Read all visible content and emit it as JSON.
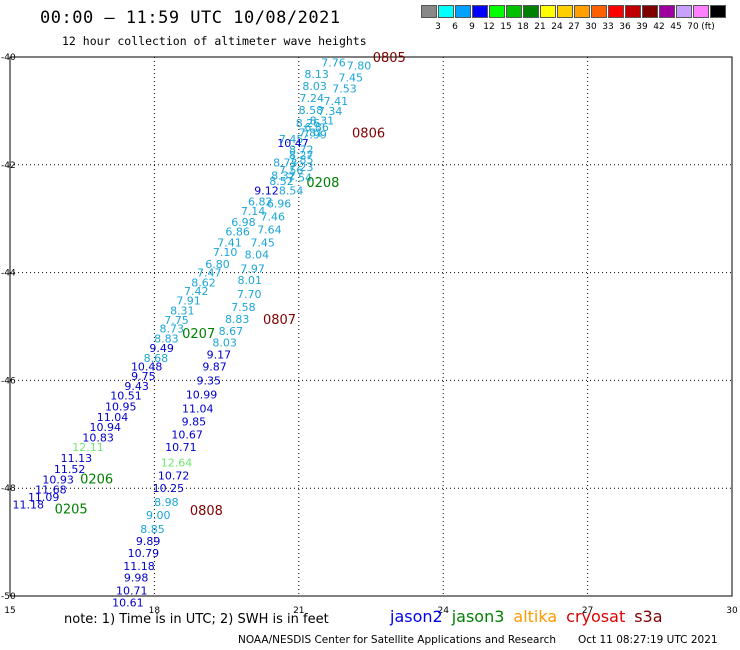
{
  "chart_data": {
    "type": "scatter",
    "title": "00:00 – 11:59 UTC 10/08/2021",
    "subtitle": "12 hour collection of altimeter wave heights",
    "xlim": [
      15,
      30
    ],
    "ylim": [
      -50,
      -40
    ],
    "x_ticks": [
      "15",
      "18",
      "21",
      "24",
      "27",
      "30"
    ],
    "y_ticks": [
      "-40",
      "-42",
      "-44",
      "-46",
      "-48",
      "-50"
    ],
    "grid": true,
    "units": "(ft)",
    "colorscale": {
      "labels": [
        "3",
        "6",
        "9",
        "12",
        "15",
        "18",
        "21",
        "24",
        "27",
        "30",
        "33",
        "36",
        "39",
        "42",
        "45",
        "70"
      ],
      "colors": [
        "#888888",
        "#00ffff",
        "#00a0ff",
        "#0000ff",
        "#00ff00",
        "#00c000",
        "#008000",
        "#ffff00",
        "#ffd000",
        "#ffa000",
        "#ff6000",
        "#ff0000",
        "#c00000",
        "#800000",
        "#a000a0",
        "#c8a0ff",
        "#ff80ff",
        "#000000"
      ]
    },
    "points": [
      {
        "x": 21.72,
        "y": -40.1,
        "v": "7.76",
        "c": "#1ba6d8"
      },
      {
        "x": 22.25,
        "y": -40.16,
        "v": "7.80",
        "c": "#1ba6d8"
      },
      {
        "x": 21.37,
        "y": -40.32,
        "v": "8.13",
        "c": "#1ba6d8"
      },
      {
        "x": 22.08,
        "y": -40.38,
        "v": "7.45",
        "c": "#1ba6d8"
      },
      {
        "x": 21.33,
        "y": -40.54,
        "v": "8.03",
        "c": "#1ba6d8"
      },
      {
        "x": 21.95,
        "y": -40.58,
        "v": "7.53",
        "c": "#1ba6d8"
      },
      {
        "x": 21.27,
        "y": -40.76,
        "v": "7.24",
        "c": "#1ba6d8"
      },
      {
        "x": 21.77,
        "y": -40.82,
        "v": "7.41",
        "c": "#1ba6d8"
      },
      {
        "x": 21.25,
        "y": -40.98,
        "v": "8.58",
        "c": "#1ba6d8"
      },
      {
        "x": 21.65,
        "y": -41.0,
        "v": "7.34",
        "c": "#1ba6d8"
      },
      {
        "x": 21.48,
        "y": -41.18,
        "v": "8.31",
        "c": "#1ba6d8"
      },
      {
        "x": 21.19,
        "y": -41.22,
        "v": "8.26",
        "c": "#1ba6d8"
      },
      {
        "x": 21.37,
        "y": -41.3,
        "v": "6.86",
        "c": "#1ba6d8"
      },
      {
        "x": 21.25,
        "y": -41.4,
        "v": "7.81",
        "c": "#1ba6d8"
      },
      {
        "x": 21.33,
        "y": -41.44,
        "v": "7.99",
        "c": "#1ba6d8"
      },
      {
        "x": 20.84,
        "y": -41.52,
        "v": "7.45",
        "c": "#1ba6d8"
      },
      {
        "x": 20.88,
        "y": -41.6,
        "v": "10.47",
        "c": "#0000cc"
      },
      {
        "x": 21.05,
        "y": -41.72,
        "v": "8.72",
        "c": "#1ba6d8"
      },
      {
        "x": 21.05,
        "y": -41.82,
        "v": "8.27",
        "c": "#1ba6d8"
      },
      {
        "x": 21.05,
        "y": -41.9,
        "v": "7.85",
        "c": "#1ba6d8"
      },
      {
        "x": 20.72,
        "y": -41.96,
        "v": "8.73",
        "c": "#1ba6d8"
      },
      {
        "x": 21.05,
        "y": -42.04,
        "v": "7.23",
        "c": "#1ba6d8"
      },
      {
        "x": 20.84,
        "y": -42.1,
        "v": "7.56",
        "c": "#1ba6d8"
      },
      {
        "x": 20.68,
        "y": -42.2,
        "v": "8.32",
        "c": "#1ba6d8"
      },
      {
        "x": 21.02,
        "y": -42.24,
        "v": "7.54",
        "c": "#1ba6d8"
      },
      {
        "x": 20.64,
        "y": -42.3,
        "v": "8.52",
        "c": "#1ba6d8"
      },
      {
        "x": 20.84,
        "y": -42.48,
        "v": "8.54",
        "c": "#1ba6d8"
      },
      {
        "x": 20.33,
        "y": -42.48,
        "v": "9.12",
        "c": "#0000cc"
      },
      {
        "x": 20.2,
        "y": -42.68,
        "v": "6.82",
        "c": "#1ba6d8"
      },
      {
        "x": 20.59,
        "y": -42.72,
        "v": "6.96",
        "c": "#1ba6d8"
      },
      {
        "x": 20.05,
        "y": -42.86,
        "v": "7.14",
        "c": "#1ba6d8"
      },
      {
        "x": 20.46,
        "y": -42.96,
        "v": "7.46",
        "c": "#1ba6d8"
      },
      {
        "x": 19.85,
        "y": -43.06,
        "v": "6.98",
        "c": "#1ba6d8"
      },
      {
        "x": 19.73,
        "y": -43.24,
        "v": "6.86",
        "c": "#1ba6d8"
      },
      {
        "x": 20.39,
        "y": -43.2,
        "v": "7.64",
        "c": "#1ba6d8"
      },
      {
        "x": 19.56,
        "y": -43.44,
        "v": "7.41",
        "c": "#1ba6d8"
      },
      {
        "x": 20.25,
        "y": -43.44,
        "v": "7.45",
        "c": "#1ba6d8"
      },
      {
        "x": 19.47,
        "y": -43.62,
        "v": "7.10",
        "c": "#1ba6d8"
      },
      {
        "x": 20.13,
        "y": -43.66,
        "v": "8.04",
        "c": "#1ba6d8"
      },
      {
        "x": 19.31,
        "y": -43.84,
        "v": "6.80",
        "c": "#1ba6d8"
      },
      {
        "x": 19.14,
        "y": -44.0,
        "v": "7.47",
        "c": "#1ba6d8"
      },
      {
        "x": 20.04,
        "y": -43.92,
        "v": "7.97",
        "c": "#1ba6d8"
      },
      {
        "x": 19.02,
        "y": -44.18,
        "v": "8.62",
        "c": "#1ba6d8"
      },
      {
        "x": 19.98,
        "y": -44.14,
        "v": "8.01",
        "c": "#1ba6d8"
      },
      {
        "x": 18.87,
        "y": -44.34,
        "v": "7.42",
        "c": "#1ba6d8"
      },
      {
        "x": 19.97,
        "y": -44.4,
        "v": "7.70",
        "c": "#1ba6d8"
      },
      {
        "x": 18.71,
        "y": -44.52,
        "v": "7.91",
        "c": "#1ba6d8"
      },
      {
        "x": 19.85,
        "y": -44.64,
        "v": "7.58",
        "c": "#1ba6d8"
      },
      {
        "x": 18.58,
        "y": -44.7,
        "v": "8.31",
        "c": "#1ba6d8"
      },
      {
        "x": 19.72,
        "y": -44.86,
        "v": "8.83",
        "c": "#1ba6d8"
      },
      {
        "x": 18.46,
        "y": -44.88,
        "v": "7.75",
        "c": "#1ba6d8"
      },
      {
        "x": 18.36,
        "y": -45.04,
        "v": "8.73",
        "c": "#1ba6d8"
      },
      {
        "x": 19.59,
        "y": -45.08,
        "v": "8.67",
        "c": "#1ba6d8"
      },
      {
        "x": 18.25,
        "y": -45.22,
        "v": "8.83",
        "c": "#1ba6d8"
      },
      {
        "x": 19.46,
        "y": -45.3,
        "v": "8.03",
        "c": "#1ba6d8"
      },
      {
        "x": 18.15,
        "y": -45.4,
        "v": "9.49",
        "c": "#0000cc"
      },
      {
        "x": 19.34,
        "y": -45.52,
        "v": "9.17",
        "c": "#0000cc"
      },
      {
        "x": 18.03,
        "y": -45.58,
        "v": "8.68",
        "c": "#1ba6d8"
      },
      {
        "x": 19.25,
        "y": -45.74,
        "v": "9.87",
        "c": "#0000cc"
      },
      {
        "x": 17.84,
        "y": -45.74,
        "v": "10.48",
        "c": "#0000cc"
      },
      {
        "x": 17.77,
        "y": -45.92,
        "v": "9.75",
        "c": "#0000cc"
      },
      {
        "x": 19.13,
        "y": -46.0,
        "v": "9.35",
        "c": "#0000cc"
      },
      {
        "x": 17.63,
        "y": -46.1,
        "v": "9.43",
        "c": "#0000cc"
      },
      {
        "x": 17.41,
        "y": -46.28,
        "v": "10.51",
        "c": "#0000cc"
      },
      {
        "x": 18.98,
        "y": -46.26,
        "v": "10.99",
        "c": "#0000cc"
      },
      {
        "x": 17.3,
        "y": -46.48,
        "v": "10.95",
        "c": "#0000cc"
      },
      {
        "x": 18.9,
        "y": -46.52,
        "v": "11.04",
        "c": "#0000cc"
      },
      {
        "x": 17.13,
        "y": -46.68,
        "v": "11.04",
        "c": "#0000cc"
      },
      {
        "x": 18.82,
        "y": -46.76,
        "v": "9.85",
        "c": "#0000cc"
      },
      {
        "x": 16.98,
        "y": -46.86,
        "v": "10.94",
        "c": "#0000cc"
      },
      {
        "x": 18.68,
        "y": -47.0,
        "v": "10.67",
        "c": "#0000cc"
      },
      {
        "x": 16.83,
        "y": -47.06,
        "v": "10.83",
        "c": "#0000cc"
      },
      {
        "x": 16.62,
        "y": -47.24,
        "v": "12.11",
        "c": "#70e870"
      },
      {
        "x": 18.55,
        "y": -47.24,
        "v": "10.71",
        "c": "#0000cc"
      },
      {
        "x": 16.38,
        "y": -47.44,
        "v": "11.13",
        "c": "#0000cc"
      },
      {
        "x": 18.46,
        "y": -47.52,
        "v": "12.64",
        "c": "#70e870"
      },
      {
        "x": 16.24,
        "y": -47.64,
        "v": "11.52",
        "c": "#0000cc"
      },
      {
        "x": 16.0,
        "y": -47.84,
        "v": "10.93",
        "c": "#0000cc"
      },
      {
        "x": 18.4,
        "y": -47.76,
        "v": "10.72",
        "c": "#0000cc"
      },
      {
        "x": 15.85,
        "y": -48.02,
        "v": "11.68",
        "c": "#0000cc"
      },
      {
        "x": 18.29,
        "y": -48.0,
        "v": "10.25",
        "c": "#0000cc"
      },
      {
        "x": 15.7,
        "y": -48.16,
        "v": "11.09",
        "c": "#0000cc"
      },
      {
        "x": 18.25,
        "y": -48.26,
        "v": "8.98",
        "c": "#1ba6d8"
      },
      {
        "x": 15.38,
        "y": -48.3,
        "v": "11.18",
        "c": "#0000cc"
      },
      {
        "x": 18.08,
        "y": -48.5,
        "v": "9.00",
        "c": "#1ba6d8"
      },
      {
        "x": 17.96,
        "y": -48.76,
        "v": "8.85",
        "c": "#1ba6d8"
      },
      {
        "x": 17.87,
        "y": -48.98,
        "v": "9.89",
        "c": "#0000cc"
      },
      {
        "x": 17.77,
        "y": -49.2,
        "v": "10.79",
        "c": "#0000cc"
      },
      {
        "x": 17.68,
        "y": -49.44,
        "v": "11.18",
        "c": "#0000cc"
      },
      {
        "x": 17.62,
        "y": -49.66,
        "v": "9.98",
        "c": "#0000cc"
      },
      {
        "x": 17.53,
        "y": -49.9,
        "v": "10.71",
        "c": "#0000cc"
      },
      {
        "x": 17.45,
        "y": -50.12,
        "v": "10.61",
        "c": "#0000cc"
      }
    ],
    "time_labels": [
      {
        "x": 22.88,
        "y": -40.0,
        "t": "0805",
        "c": "#800000"
      },
      {
        "x": 22.45,
        "y": -41.4,
        "t": "0806",
        "c": "#800000"
      },
      {
        "x": 21.5,
        "y": -42.32,
        "t": "0208",
        "c": "#008000"
      },
      {
        "x": 20.6,
        "y": -44.86,
        "t": "0807",
        "c": "#800000"
      },
      {
        "x": 18.92,
        "y": -45.12,
        "t": "0207",
        "c": "#008000"
      },
      {
        "x": 16.8,
        "y": -47.82,
        "t": "0206",
        "c": "#008000"
      },
      {
        "x": 16.27,
        "y": -48.38,
        "t": "0205",
        "c": "#008000"
      },
      {
        "x": 19.08,
        "y": -48.4,
        "t": "0808",
        "c": "#800000"
      }
    ]
  },
  "note": "note:  1) Time is in UTC;  2) SWH is in feet",
  "missions": [
    {
      "name": "jason2",
      "color": "#0000ee"
    },
    {
      "name": "jason3",
      "color": "#008000"
    },
    {
      "name": "altika",
      "color": "#ff9900"
    },
    {
      "name": "cryosat",
      "color": "#dd0000"
    },
    {
      "name": "s3a",
      "color": "#800000"
    }
  ],
  "credit": "NOAA/NESDIS Center for Satellite Applications and Research",
  "credit_timestamp": "Oct 11 08:27:19 UTC 2021"
}
